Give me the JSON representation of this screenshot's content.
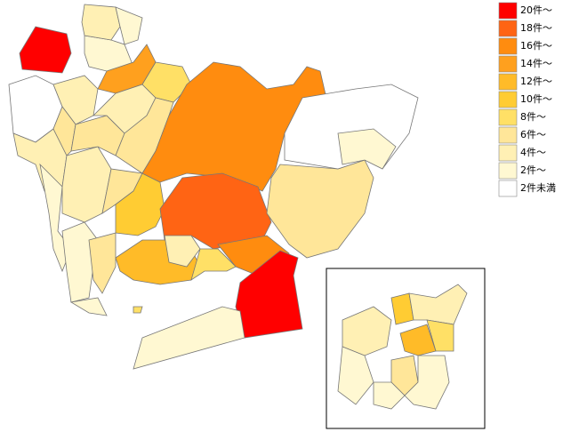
{
  "legend": {
    "items": [
      {
        "label": "20件～",
        "color": "#ff0000"
      },
      {
        "label": "18件～",
        "color": "#ff6414"
      },
      {
        "label": "16件～",
        "color": "#ff8c0f"
      },
      {
        "label": "14件～",
        "color": "#ffa01e"
      },
      {
        "label": "12件～",
        "color": "#ffbb28"
      },
      {
        "label": "10件～",
        "color": "#ffcc33"
      },
      {
        "label": "8件～",
        "color": "#ffe066"
      },
      {
        "label": "6件～",
        "color": "#ffe699"
      },
      {
        "label": "4件～",
        "color": "#fff0b4"
      },
      {
        "label": "2件～",
        "color": "#fff8d2"
      },
      {
        "label": "2件未満",
        "color": "#ffffff"
      }
    ]
  }
}
